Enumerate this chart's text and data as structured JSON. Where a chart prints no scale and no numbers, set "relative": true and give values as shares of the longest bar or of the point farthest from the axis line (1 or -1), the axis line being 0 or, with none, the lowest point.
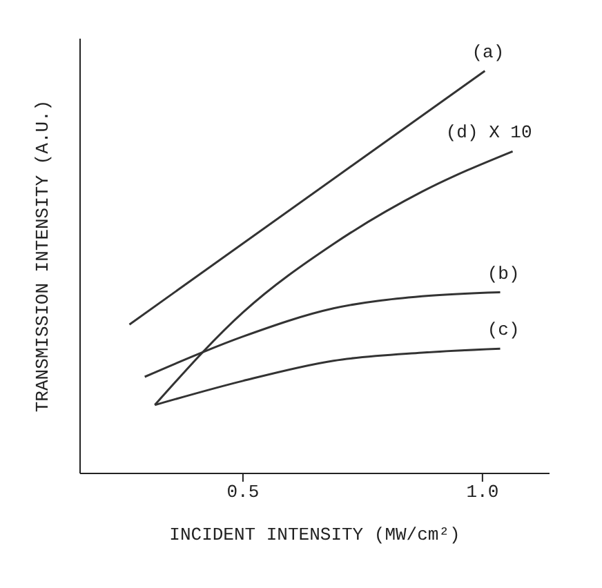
{
  "chart_data": {
    "type": "line",
    "relative": true,
    "xlabel": "INCIDENT INTENSITY (MW/cm²)",
    "ylabel": "TRANSMISSION INTENSITY (A.U.)",
    "xlim": [
      0.16,
      1.14
    ],
    "xticks": [
      0.5,
      {
        "value": 1.0,
        "label": "1.0"
      }
    ],
    "grid": false,
    "legend": false,
    "marker": "none",
    "line_style": "solid",
    "series": [
      {
        "name": "(a)",
        "color": "#333333",
        "x": [
          0.263,
          1.005
        ],
        "values": [
          0.37,
          1.0
        ]
      },
      {
        "name": "(d) X 10",
        "color": "#333333",
        "x": [
          0.316,
          0.5,
          0.689,
          0.874,
          1.063
        ],
        "values": [
          0.17,
          0.4,
          0.57,
          0.7,
          0.8
        ]
      },
      {
        "name": "(b)",
        "color": "#333333",
        "x": [
          0.295,
          0.5,
          0.689,
          0.874,
          1.037
        ],
        "values": [
          0.24,
          0.34,
          0.41,
          0.44,
          0.45
        ]
      },
      {
        "name": "(c)",
        "color": "#333333",
        "x": [
          0.316,
          0.5,
          0.689,
          0.874,
          1.037
        ],
        "values": [
          0.17,
          0.23,
          0.28,
          0.3,
          0.31
        ]
      }
    ]
  }
}
